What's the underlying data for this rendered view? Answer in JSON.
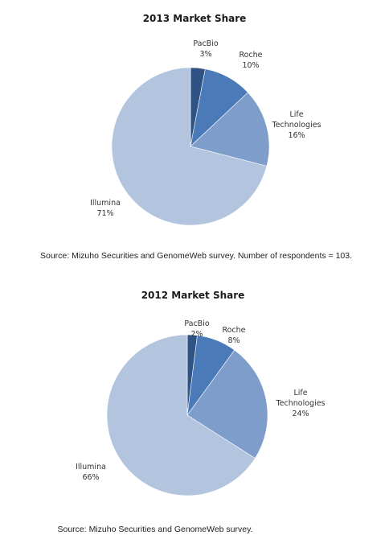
{
  "chart_data": [
    {
      "type": "pie",
      "title": "2013 Market Share",
      "slices": [
        {
          "label_lines": [
            "PacBio"
          ],
          "pct_text": "3%",
          "value": 3,
          "color": "#2f5385"
        },
        {
          "label_lines": [
            "Roche"
          ],
          "pct_text": "10%",
          "value": 10,
          "color": "#4a7ab8"
        },
        {
          "label_lines": [
            "Life",
            "Technologies"
          ],
          "pct_text": "16%",
          "value": 16,
          "color": "#7e9dcb"
        },
        {
          "label_lines": [
            "Illumina"
          ],
          "pct_text": "71%",
          "value": 71,
          "color": "#b3c4df"
        }
      ],
      "source": "Source: Mizuho Securities and GenomeWeb survey. Number of respondents = 103."
    },
    {
      "type": "pie",
      "title": "2012 Market Share",
      "slices": [
        {
          "label_lines": [
            "PacBio"
          ],
          "pct_text": "2%",
          "value": 2,
          "color": "#2f5385"
        },
        {
          "label_lines": [
            "Roche"
          ],
          "pct_text": "8%",
          "value": 8,
          "color": "#4a7ab8"
        },
        {
          "label_lines": [
            "Life",
            "Technologies"
          ],
          "pct_text": "24%",
          "value": 24,
          "color": "#7e9dcb"
        },
        {
          "label_lines": [
            "Illumina"
          ],
          "pct_text": "66%",
          "value": 66,
          "color": "#b3c4df"
        }
      ],
      "source": "Source: Mizuho Securities and GenomeWeb survey."
    }
  ]
}
